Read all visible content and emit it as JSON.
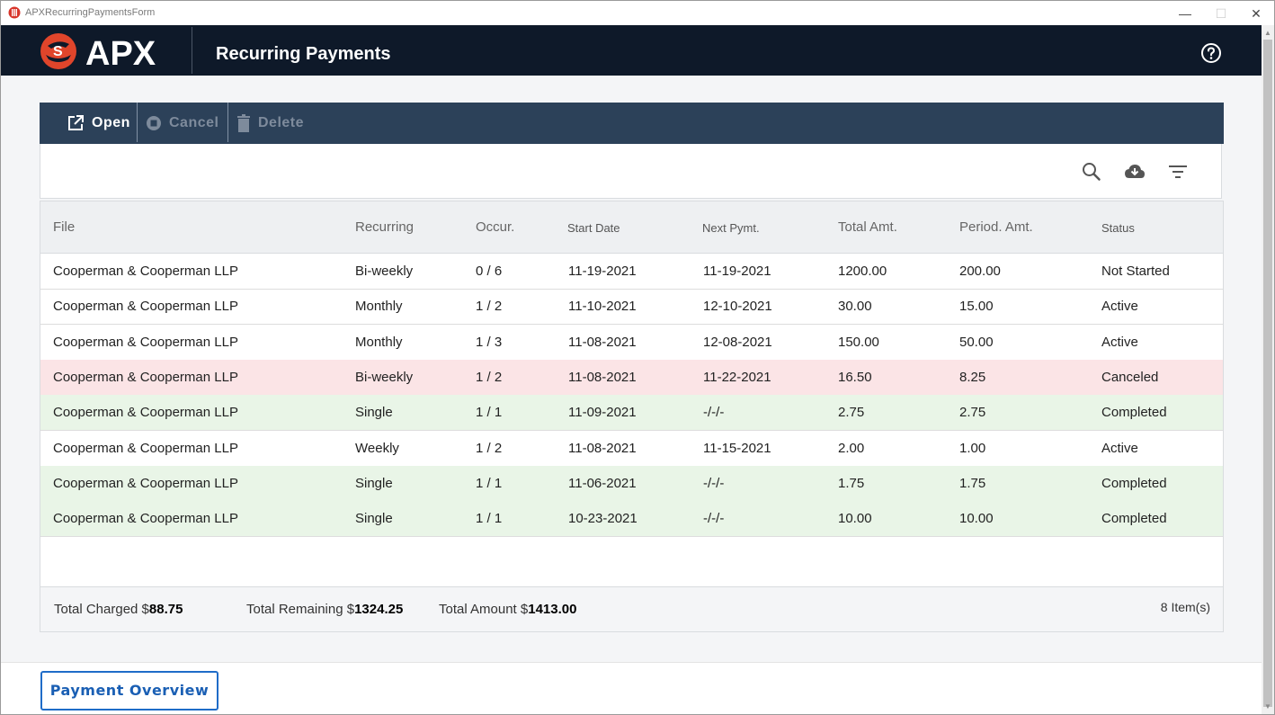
{
  "window": {
    "title": "APXRecurringPaymentsForm",
    "controls": [
      "—",
      "☐",
      "✕"
    ]
  },
  "header": {
    "logo_text": "APX",
    "page_title": "Recurring Payments",
    "help_icon": "help-circle-icon"
  },
  "toolbar": {
    "open_label": "Open",
    "cancel_label": "Cancel",
    "delete_label": "Delete"
  },
  "filterbar": {
    "icons": [
      "search-icon",
      "cloud-download-icon",
      "filter-list-icon"
    ]
  },
  "table": {
    "columns": [
      "File",
      "Recurring",
      "Occur.",
      "Start Date",
      "Next Pymt.",
      "Total Amt.",
      "Period. Amt.",
      "Status"
    ],
    "rows": [
      {
        "file": "Cooperman & Cooperman LLP",
        "recurring": "Bi-weekly",
        "occur": "0 / 6",
        "start": "11-19-2021",
        "next": "11-19-2021",
        "total": "1200.00",
        "period": "200.00",
        "status": "Not Started",
        "state": "normal"
      },
      {
        "file": "Cooperman & Cooperman LLP",
        "recurring": "Monthly",
        "occur": "1 / 2",
        "start": "11-10-2021",
        "next": "12-10-2021",
        "total": "30.00",
        "period": "15.00",
        "status": "Active",
        "state": "normal"
      },
      {
        "file": "Cooperman & Cooperman LLP",
        "recurring": "Monthly",
        "occur": "1 / 3",
        "start": "11-08-2021",
        "next": "12-08-2021",
        "total": "150.00",
        "period": "50.00",
        "status": "Active",
        "state": "normal"
      },
      {
        "file": "Cooperman & Cooperman LLP",
        "recurring": "Bi-weekly",
        "occur": "1 / 2",
        "start": "11-08-2021",
        "next": "11-22-2021",
        "total": "16.50",
        "period": "8.25",
        "status": "Canceled",
        "state": "canceled"
      },
      {
        "file": "Cooperman & Cooperman LLP",
        "recurring": "Single",
        "occur": "1 / 1",
        "start": "11-09-2021",
        "next": "-/-/-",
        "total": "2.75",
        "period": "2.75",
        "status": "Completed",
        "state": "completed"
      },
      {
        "file": "Cooperman & Cooperman LLP",
        "recurring": "Weekly",
        "occur": "1 / 2",
        "start": "11-08-2021",
        "next": "11-15-2021",
        "total": "2.00",
        "period": "1.00",
        "status": "Active",
        "state": "normal"
      },
      {
        "file": "Cooperman & Cooperman LLP",
        "recurring": "Single",
        "occur": "1 / 1",
        "start": "11-06-2021",
        "next": "-/-/-",
        "total": "1.75",
        "period": "1.75",
        "status": "Completed",
        "state": "completed"
      },
      {
        "file": "Cooperman & Cooperman LLP",
        "recurring": "Single",
        "occur": "1 / 1",
        "start": "10-23-2021",
        "next": "-/-/-",
        "total": "10.00",
        "period": "10.00",
        "status": "Completed",
        "state": "completed"
      }
    ]
  },
  "footer": {
    "charged_label": "Total Charged $",
    "charged_value": "88.75",
    "remaining_label": "Total Remaining $",
    "remaining_value": "1324.25",
    "amount_label": "Total Amount $",
    "amount_value": "1413.00",
    "item_count": "8 Item(s)"
  },
  "bottom": {
    "payment_overview_label": "Payment Overview"
  },
  "colors": {
    "header_bg": "#0e1929",
    "toolbar_bg": "#2c4159",
    "canceled_row": "#fbe4e6",
    "completed_row": "#e9f5e7",
    "accent": "#1f6cc8",
    "logo_red": "#e0452b"
  }
}
